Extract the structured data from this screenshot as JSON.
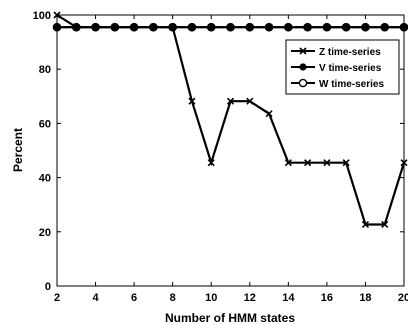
{
  "chart_data": {
    "type": "line",
    "xlabel": "Number of HMM states",
    "ylabel": "Percent",
    "xlim": [
      2,
      20
    ],
    "ylim": [
      0,
      100
    ],
    "x_ticks": [
      2,
      4,
      6,
      8,
      10,
      12,
      14,
      16,
      18,
      20
    ],
    "y_ticks": [
      0,
      20,
      40,
      60,
      80,
      100
    ],
    "grid": false,
    "legend_position": "top-right",
    "x": [
      2,
      3,
      4,
      5,
      6,
      7,
      8,
      9,
      10,
      11,
      12,
      13,
      14,
      15,
      16,
      17,
      18,
      19,
      20
    ],
    "series": [
      {
        "name": "Z time-series",
        "marker": "x",
        "color": "#000000",
        "values": [
          100,
          95.5,
          95.5,
          95.5,
          95.5,
          95.5,
          95.5,
          68.2,
          45.5,
          68.2,
          68.2,
          63.6,
          45.5,
          45.5,
          45.5,
          45.5,
          22.7,
          22.7,
          45.5
        ]
      },
      {
        "name": "V time-series",
        "marker": "filled-circle",
        "color": "#000000",
        "values": [
          95.5,
          95.5,
          95.5,
          95.5,
          95.5,
          95.5,
          95.5,
          95.5,
          95.5,
          95.5,
          95.5,
          95.5,
          95.5,
          95.5,
          95.5,
          95.5,
          95.5,
          95.5,
          95.5
        ]
      },
      {
        "name": "W time-series",
        "marker": "open-circle",
        "color": "#000000",
        "values": [
          95.5,
          95.5,
          95.5,
          95.5,
          95.5,
          95.5,
          95.5,
          95.5,
          95.5,
          95.5,
          95.5,
          95.5,
          95.5,
          95.5,
          95.5,
          95.5,
          95.5,
          95.5,
          95.5
        ]
      }
    ]
  }
}
